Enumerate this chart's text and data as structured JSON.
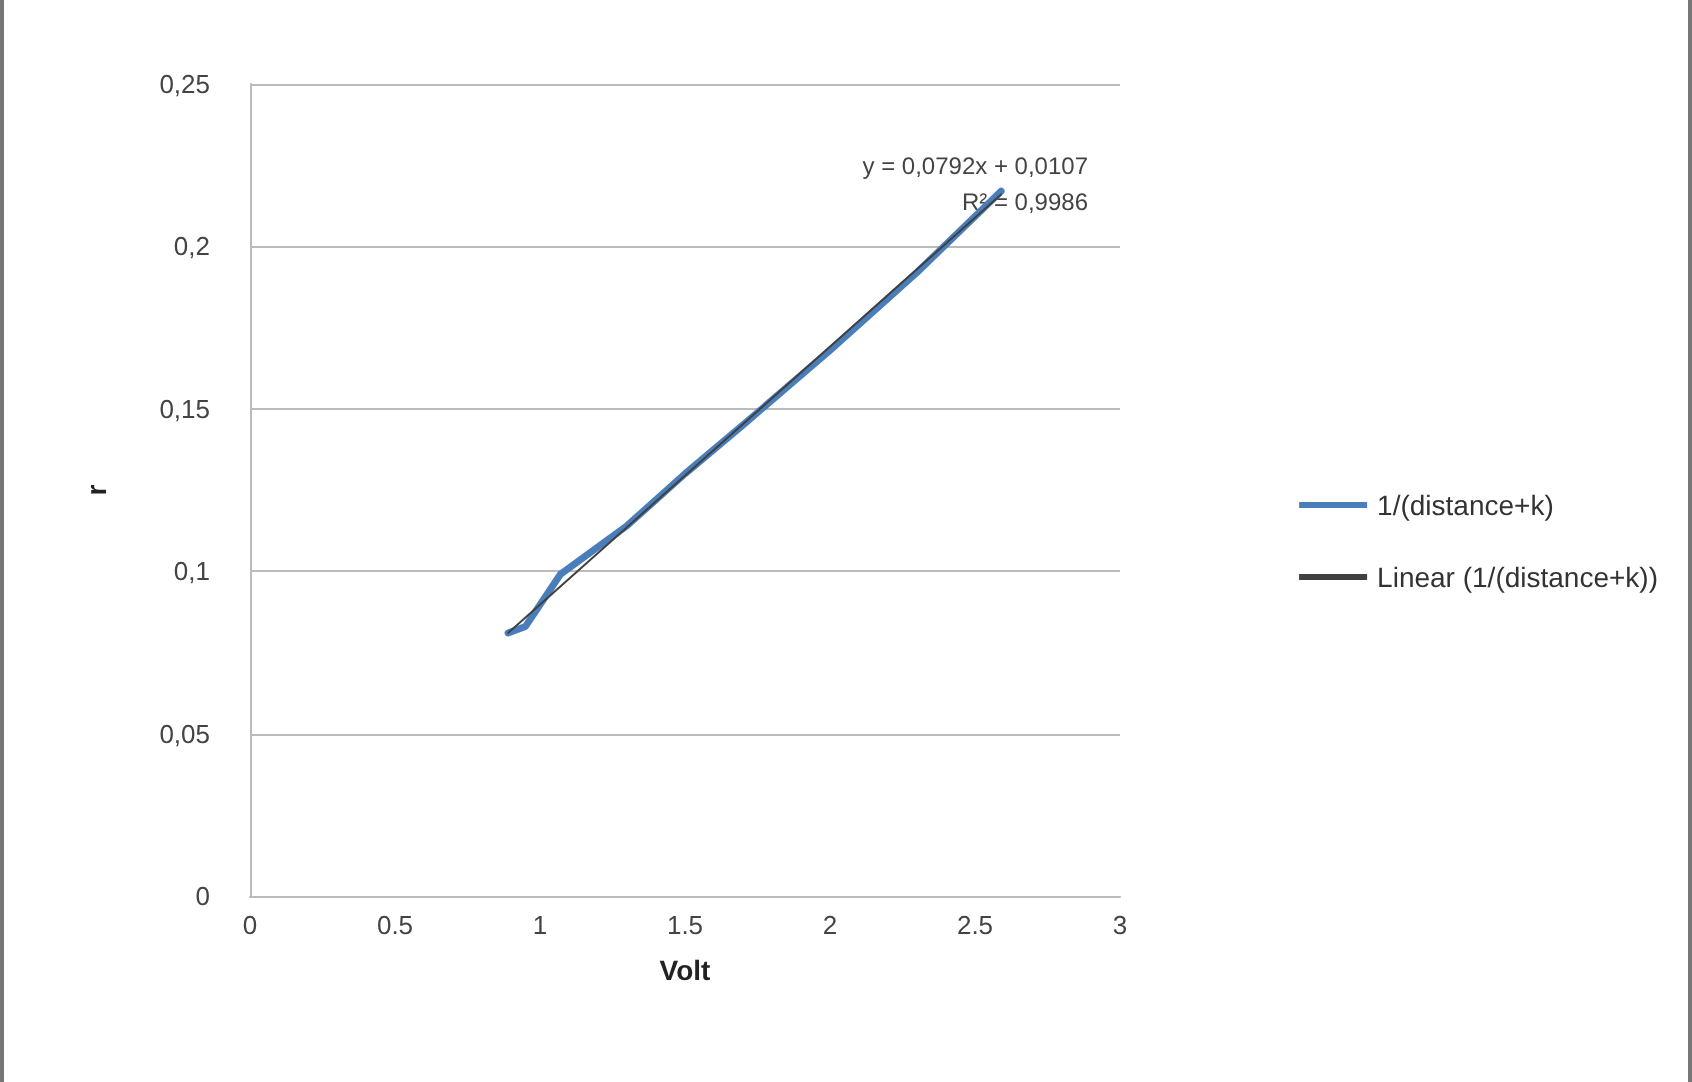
{
  "chart_data": {
    "type": "line",
    "xlabel": "Volt",
    "ylabel": "r",
    "xlim": [
      0,
      3
    ],
    "xticks": [
      0,
      {
        "value": 0.5,
        "label": "0.5"
      },
      1,
      {
        "value": 1.5,
        "label": "1.5"
      },
      2,
      {
        "value": 2.5,
        "label": "2.5"
      },
      3
    ],
    "ylim": [
      0,
      0.25
    ],
    "yticks": [
      0,
      {
        "value": 0.05,
        "label": "0,05"
      },
      {
        "value": 0.1,
        "label": "0,1"
      },
      {
        "value": 0.15,
        "label": "0,15"
      },
      {
        "value": 0.2,
        "label": "0,2"
      },
      {
        "value": 0.25,
        "label": "0,25"
      }
    ],
    "x": [
      0.89,
      0.95,
      1.07,
      1.3,
      1.5,
      1.7,
      2.0,
      2.3,
      2.59
    ],
    "series": [
      {
        "name": "1/(distance+k)",
        "color": "#4a7ebb",
        "values": [
          0.081,
          0.083,
          0.099,
          0.114,
          0.13,
          0.145,
          0.168,
          0.192,
          0.217
        ]
      },
      {
        "name": "Linear (1/(distance+k))",
        "color": "#404040",
        "type": "line",
        "x": [
          0.89,
          2.59
        ],
        "values": [
          0.081,
          0.216
        ]
      }
    ],
    "annotations": [
      "y = 0,0792x + 0,0107",
      "R² = 0,9986"
    ],
    "grid": "y",
    "legend": "right",
    "marker": "none"
  }
}
